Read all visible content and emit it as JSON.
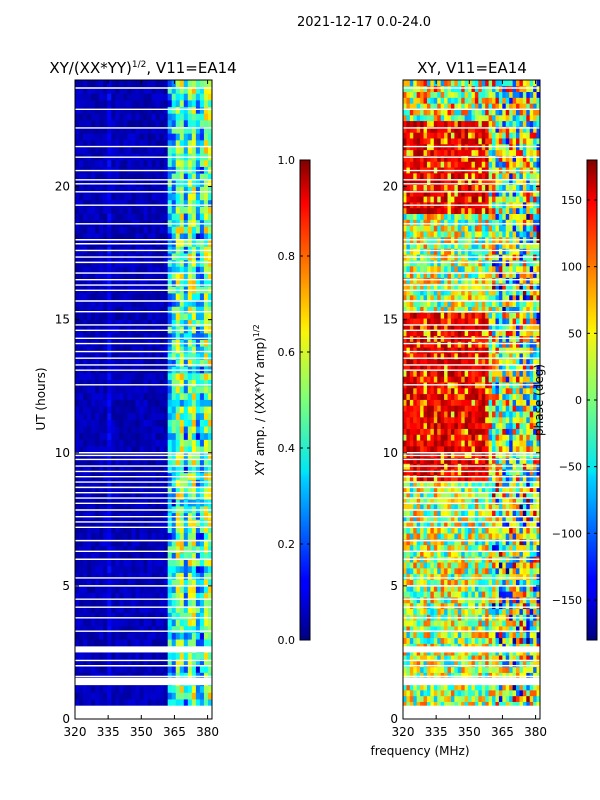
{
  "figure": {
    "suptitle": "2021-12-17 0.0-24.0",
    "xlabel": "frequency (MHz)",
    "colors": {
      "background": "#ffffff",
      "frame": "#000000",
      "gap": "#ffffff"
    }
  },
  "chart_data": [
    {
      "type": "heatmap",
      "title_main": "XY/(XX*YY)",
      "title_sup": "1/2",
      "title_rest": ", V11=EA14",
      "xlabel": "",
      "ylabel": "UT (hours)",
      "xlim": [
        320,
        382
      ],
      "ylim": [
        0,
        24
      ],
      "xticks": [
        320,
        335,
        350,
        365,
        380
      ],
      "yticks": [
        0,
        5,
        10,
        15,
        20
      ],
      "colorbar": {
        "label_main": "XY amp. / (XX*YY amp)",
        "label_sup": "1/2",
        "range": [
          0.0,
          1.0
        ],
        "ticks": [
          "0.0",
          "0.2",
          "0.4",
          "0.6",
          "0.8",
          "1.0"
        ],
        "colormap": "jet"
      },
      "description": "Normalized XY amplitude: near zero (dark blue) below ~360 MHz, moderate-to-high values (cyan/green/yellow) in 362-382 MHz band",
      "band_low_value": 0.05,
      "band_high_range_mhz": [
        362,
        382
      ],
      "band_high_value": 0.45
    },
    {
      "type": "heatmap",
      "title_main": "XY, V11=EA14",
      "title_sup": "",
      "title_rest": "",
      "xlabel": "",
      "ylabel": "",
      "xlim": [
        320,
        382
      ],
      "ylim": [
        0,
        24
      ],
      "xticks": [
        320,
        335,
        350,
        365,
        380
      ],
      "yticks": [
        0,
        5,
        10,
        15,
        20
      ],
      "colorbar": {
        "label_main": "phase (deg)",
        "label_sup": "",
        "range": [
          -180,
          180
        ],
        "ticks": [
          "−150",
          "−100",
          "−50",
          "0",
          "50",
          "100",
          "150"
        ],
        "colormap": "jet"
      },
      "description": "XY phase in degrees spanning -180 to 180 with noisy structure, dominant red/orange (~+130 to +180 deg) regions at 320-360 MHz around 9-15 UT and 19-22 UT"
    }
  ],
  "gap_rows_ut": [
    0.1,
    0.25,
    0.45,
    1.3,
    1.45,
    1.6,
    2.0,
    2.2,
    2.55,
    2.7,
    3.3,
    3.8,
    4.2,
    4.5,
    5.0,
    5.3,
    6.0,
    6.3,
    6.7,
    7.2,
    7.4,
    7.6,
    7.85,
    8.1,
    8.3,
    8.5,
    8.7,
    8.9,
    9.1,
    9.3,
    9.5,
    9.75,
    9.9,
    10.0,
    12.55,
    13.1,
    13.3,
    13.55,
    13.8,
    14.1,
    14.3,
    14.6,
    14.8,
    15.3,
    15.7,
    16.1,
    16.3,
    16.5,
    16.75,
    17.15,
    17.35,
    17.6,
    17.85,
    18.0,
    18.6,
    19.3,
    19.8,
    20.1,
    20.25,
    20.6,
    21.1,
    21.5,
    22.2,
    22.9,
    23.7
  ],
  "gap_pairs_ut": [
    [
      0.0,
      0.5
    ],
    [
      1.3,
      1.55
    ],
    [
      2.5,
      2.7
    ]
  ]
}
